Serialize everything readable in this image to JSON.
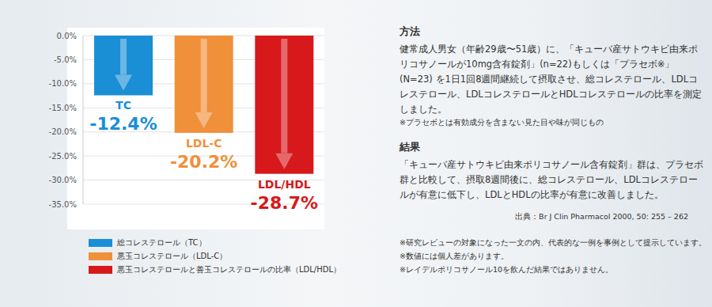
{
  "chart_data": {
    "type": "bar",
    "categories": [
      "TC",
      "LDL-C",
      "LDL/HDL"
    ],
    "series": [
      {
        "name": "総コレステロール（TC）",
        "color": "#1a8fd6",
        "values": [
          -12.4,
          null,
          null
        ],
        "value_labels": [
          "-12.4%",
          null,
          null
        ]
      },
      {
        "name": "悪玉コレステロール（LDL-C）",
        "color": "#f0903a",
        "values": [
          null,
          -20.2,
          null
        ],
        "value_labels": [
          null,
          "-20.2%",
          null
        ]
      },
      {
        "name": "悪玉コレステロールと善玉コレステロールの比率（LDL/HDL）",
        "color": "#d7191b",
        "values": [
          null,
          null,
          -28.7
        ],
        "value_labels": [
          null,
          null,
          "-28.7%"
        ]
      }
    ],
    "ylim": [
      -35,
      0
    ],
    "yticks": [
      {
        "value": 0,
        "label": "0.0%"
      },
      {
        "value": -5,
        "label": "-5.0%"
      },
      {
        "value": -10,
        "label": "-10.0%"
      },
      {
        "value": -15,
        "label": "-15.0%"
      },
      {
        "value": -20,
        "label": "-20.0%"
      },
      {
        "value": -25,
        "label": "-25.0%"
      },
      {
        "value": -30,
        "label": "-30.0%"
      },
      {
        "value": -35,
        "label": "-35.0%"
      }
    ],
    "grid": true,
    "stacked": true,
    "data_labels": true,
    "tick_labels": "y",
    "legend": "bottom-left",
    "annotations": {
      "method_title": "方法",
      "method_text": "健常成人男女（年齢29歳〜51歳）に、「キューバ産サトウキビ由来ポリコサノールが10mg含有錠剤」(n=22)もしくは「プラセボ※」(N=23) を1日1回8週間継続して摂取させ、総コレステロール、LDLコレステロール、LDLコレステロールとHDLコレステロールの比率を測定しました。",
      "method_note": "※プラセボとは有効成分を含まない見た目や味が同じもの",
      "result_title": "結果",
      "result_text": "「キューバ産サトウキビ由来ポリコサノール含有錠剤」群は、プラセボ群と比較して、摂取8週間後に、総コレステロール、LDLコレステロールが有意に低下し、LDLとHDLの比率が有意に改善しました。",
      "source": "出典：Br J Clin Pharmacol 2000,  50: 255 – 262",
      "notes": [
        "※研究レビューの対象になった一文の内、代表的な一例を事例として提示しています。",
        "※数値には個人差があります。",
        "※レイデルポリコサノール10を飲んだ結果ではありません。"
      ]
    }
  }
}
